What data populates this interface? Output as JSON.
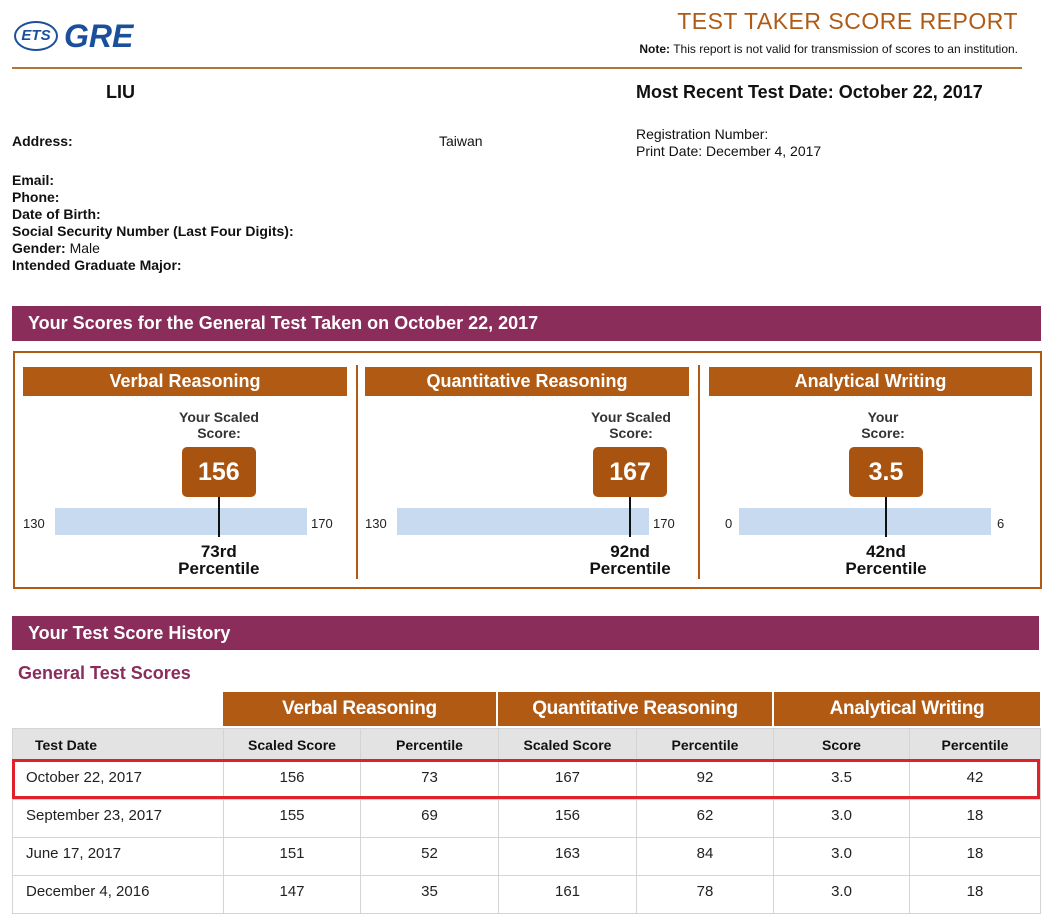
{
  "header": {
    "logo_ets": "ETS",
    "logo_gre": "GRE",
    "report_title": "TEST TAKER SCORE REPORT",
    "note_label": "Note:",
    "note_text": "This report is not valid for transmission of scores to an institution."
  },
  "candidate": {
    "name": "LIU",
    "most_recent_test_date": "Most Recent Test Date: October 22, 2017",
    "address_label": "Address:",
    "address_country": "Taiwan",
    "registration_label": "Registration Number:",
    "print_date": "Print Date: December 4, 2017",
    "email_label": "Email:",
    "phone_label": "Phone:",
    "dob_label": "Date of Birth:",
    "ssn_label": "Social Security Number (Last Four Digits):",
    "gender_label": "Gender:",
    "gender_value": "Male",
    "major_label": "Intended Graduate Major:"
  },
  "scores_section": {
    "title": "Your Scores for the General Test Taken on October 22, 2017",
    "panels": [
      {
        "name": "Verbal Reasoning",
        "scaled_label_1": "Your Scaled",
        "scaled_label_2": "Score:",
        "score": "156",
        "min": "130",
        "max": "170",
        "score_num": 156,
        "min_num": 130,
        "max_num": 170,
        "pct_1": "73rd",
        "pct_2": "Percentile"
      },
      {
        "name": "Quantitative Reasoning",
        "scaled_label_1": "Your Scaled",
        "scaled_label_2": "Score:",
        "score": "167",
        "min": "130",
        "max": "170",
        "score_num": 167,
        "min_num": 130,
        "max_num": 170,
        "pct_1": "92nd",
        "pct_2": "Percentile"
      },
      {
        "name": "Analytical Writing",
        "scaled_label_1": "Your",
        "scaled_label_2": "Score:",
        "score": "3.5",
        "min": "0",
        "max": "6",
        "score_num": 3.5,
        "min_num": 0,
        "max_num": 6,
        "pct_1": "42nd",
        "pct_2": "Percentile"
      }
    ]
  },
  "history": {
    "title": "Your Test Score History",
    "subtitle": "General Test Scores",
    "groups": [
      "Verbal Reasoning",
      "Quantitative Reasoning",
      "Analytical Writing"
    ],
    "columns": [
      "Test Date",
      "Scaled Score",
      "Percentile",
      "Scaled Score",
      "Percentile",
      "Score",
      "Percentile"
    ],
    "rows": [
      [
        "October 22, 2017",
        "156",
        "73",
        "167",
        "92",
        "3.5",
        "42"
      ],
      [
        "September 23, 2017",
        "155",
        "69",
        "156",
        "62",
        "3.0",
        "18"
      ],
      [
        "June 17, 2017",
        "151",
        "52",
        "163",
        "84",
        "3.0",
        "18"
      ],
      [
        "December 4, 2016",
        "147",
        "35",
        "161",
        "78",
        "3.0",
        "18"
      ]
    ]
  },
  "colors": {
    "brand_blue": "#1b4f9c",
    "ets_orange": "#b05a13",
    "section_purple": "#8a2d5b",
    "score_bar": "#c7daf0",
    "highlight_red": "#e0202a"
  }
}
